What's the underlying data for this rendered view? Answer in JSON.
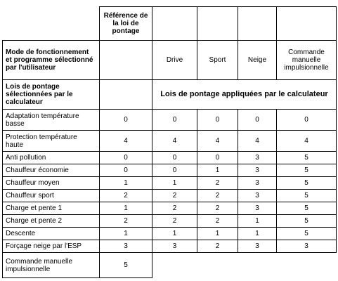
{
  "header": {
    "reference_col": "Référence de la loi de pontage",
    "mode_label": "Mode de fonctionnement et programme sélectionné par l'utilisateur",
    "modes": [
      "Drive",
      "Sport",
      "Neige",
      "Commande manuelle impulsionnelle"
    ],
    "lois_label": "Lois de pontage sélectionnées par le calculateur",
    "applied_label": "Lois de pontage appliquées par le calculateur"
  },
  "rows": [
    {
      "label": "Adaptation température basse",
      "values": [
        "0",
        "0",
        "0",
        "0",
        "0"
      ]
    },
    {
      "label": "Protection température haute",
      "values": [
        "4",
        "4",
        "4",
        "4",
        "4"
      ]
    },
    {
      "label": "Anti pollution",
      "values": [
        "0",
        "0",
        "0",
        "3",
        "5"
      ]
    },
    {
      "label": "Chauffeur économie",
      "values": [
        "0",
        "0",
        "1",
        "3",
        "5"
      ]
    },
    {
      "label": "Chauffeur moyen",
      "values": [
        "1",
        "1",
        "2",
        "3",
        "5"
      ]
    },
    {
      "label": "Chauffeur sport",
      "values": [
        "2",
        "2",
        "2",
        "3",
        "5"
      ]
    },
    {
      "label": "Charge et pente 1",
      "values": [
        "1",
        "2",
        "2",
        "3",
        "5"
      ]
    },
    {
      "label": "Charge et pente 2",
      "values": [
        "2",
        "2",
        "2",
        "1",
        "5"
      ]
    },
    {
      "label": "Descente",
      "values": [
        "1",
        "1",
        "1",
        "1",
        "5"
      ]
    },
    {
      "label": "Forçage neige par l'ESP",
      "values": [
        "3",
        "3",
        "2",
        "3",
        "3"
      ]
    }
  ],
  "last_row": {
    "label": "Commande manuelle impulsionnelle",
    "value": "5"
  }
}
